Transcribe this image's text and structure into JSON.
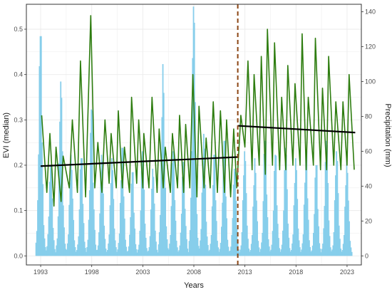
{
  "chart_data": {
    "type": "line",
    "title": "",
    "xlabel": "Years",
    "ylabel_left": "EVI (median)",
    "ylabel_right": "Precipitation (mm)",
    "x_ticks": [
      1993,
      1998,
      2003,
      2008,
      2013,
      2018,
      2023
    ],
    "y_left_ticks": [
      0.0,
      0.1,
      0.2,
      0.3,
      0.4,
      0.5
    ],
    "y_left_tick_labels": [
      "0.0",
      "0.1",
      "0.2",
      "0.3",
      "0.4",
      "0.5"
    ],
    "y_right_ticks": [
      0,
      20,
      40,
      60,
      80,
      100,
      120,
      140
    ],
    "xlim": [
      1991.6,
      2024.4
    ],
    "ylim_left": [
      -0.02,
      0.555
    ],
    "ylim_right": [
      -5.2,
      144.3
    ],
    "grid": true,
    "changepoint_year": 2012.3,
    "colors": {
      "evi_line": "#2e7d10",
      "precipitation_bars": "#87ceeb",
      "trend_line": "#000000",
      "changepoint_line": "#8b4513",
      "grid": "#ebebeb",
      "border": "#333333"
    },
    "series": [
      {
        "kind": "evi_seasonal_peaks",
        "comment": "annual peak (year, value) pairs of the EVI median line",
        "peaks": [
          [
            1993.1,
            0.31
          ],
          [
            1993.9,
            0.27
          ],
          [
            1994.5,
            0.24
          ],
          [
            1995.2,
            0.22
          ],
          [
            1996.1,
            0.3
          ],
          [
            1996.9,
            0.43
          ],
          [
            1997.9,
            0.53
          ],
          [
            1998.6,
            0.25
          ],
          [
            1999.3,
            0.3
          ],
          [
            1999.9,
            0.27
          ],
          [
            2000.6,
            0.32
          ],
          [
            2001.2,
            0.24
          ],
          [
            2001.9,
            0.35
          ],
          [
            2002.6,
            0.3
          ],
          [
            2003.1,
            0.27
          ],
          [
            2003.9,
            0.35
          ],
          [
            2004.6,
            0.28
          ],
          [
            2005.2,
            0.24
          ],
          [
            2005.9,
            0.27
          ],
          [
            2006.6,
            0.31
          ],
          [
            2007.2,
            0.29
          ],
          [
            2007.9,
            0.4
          ],
          [
            2008.5,
            0.33
          ],
          [
            2009.2,
            0.26
          ],
          [
            2009.9,
            0.34
          ],
          [
            2010.6,
            0.32
          ],
          [
            2011.2,
            0.3
          ],
          [
            2011.9,
            0.28
          ],
          [
            2012.6,
            0.31
          ],
          [
            2013.3,
            0.43
          ],
          [
            2013.9,
            0.4
          ],
          [
            2014.6,
            0.44
          ],
          [
            2015.2,
            0.5
          ],
          [
            2015.9,
            0.47
          ],
          [
            2016.6,
            0.35
          ],
          [
            2017.2,
            0.42
          ],
          [
            2017.9,
            0.38
          ],
          [
            2018.6,
            0.49
          ],
          [
            2019.2,
            0.35
          ],
          [
            2019.9,
            0.48
          ],
          [
            2020.6,
            0.37
          ],
          [
            2021.2,
            0.44
          ],
          [
            2021.9,
            0.34
          ],
          [
            2022.6,
            0.34
          ],
          [
            2023.2,
            0.4
          ]
        ],
        "troughs": [
          [
            1993.6,
            0.14
          ],
          [
            1994.3,
            0.11
          ],
          [
            1995.0,
            0.12
          ],
          [
            1995.8,
            0.15
          ],
          [
            1996.6,
            0.14
          ],
          [
            1997.4,
            0.13
          ],
          [
            1998.3,
            0.15
          ],
          [
            1999.0,
            0.14
          ],
          [
            1999.7,
            0.16
          ],
          [
            2000.4,
            0.15
          ],
          [
            2001.0,
            0.15
          ],
          [
            2001.7,
            0.14
          ],
          [
            2002.4,
            0.16
          ],
          [
            2003.0,
            0.15
          ],
          [
            2003.6,
            0.15
          ],
          [
            2004.4,
            0.14
          ],
          [
            2005.0,
            0.15
          ],
          [
            2005.7,
            0.14
          ],
          [
            2006.4,
            0.15
          ],
          [
            2007.0,
            0.14
          ],
          [
            2007.6,
            0.15
          ],
          [
            2008.3,
            0.13
          ],
          [
            2009.0,
            0.15
          ],
          [
            2009.6,
            0.15
          ],
          [
            2010.3,
            0.14
          ],
          [
            2011.0,
            0.14
          ],
          [
            2011.6,
            0.13
          ],
          [
            2012.2,
            0.15
          ],
          [
            2013.0,
            0.24
          ],
          [
            2013.7,
            0.19
          ],
          [
            2014.4,
            0.2
          ],
          [
            2015.0,
            0.18
          ],
          [
            2015.7,
            0.2
          ],
          [
            2016.4,
            0.19
          ],
          [
            2017.0,
            0.19
          ],
          [
            2017.7,
            0.2
          ],
          [
            2018.4,
            0.2
          ],
          [
            2019.0,
            0.19
          ],
          [
            2019.7,
            0.2
          ],
          [
            2020.4,
            0.19
          ],
          [
            2021.0,
            0.19
          ],
          [
            2021.7,
            0.2
          ],
          [
            2022.4,
            0.19
          ],
          [
            2023.0,
            0.2
          ],
          [
            2023.7,
            0.19
          ]
        ]
      },
      {
        "kind": "trend_segments",
        "segments": [
          {
            "x": [
              1993.0,
              2012.3
            ],
            "y": [
              0.198,
              0.218
            ]
          },
          {
            "x": [
              2012.3,
              2023.8
            ],
            "y": [
              0.287,
              0.272
            ]
          }
        ]
      },
      {
        "kind": "precipitation_bars",
        "comment": "annual peak monthly precipitation (mm) shown as spikes",
        "annual_peaks": [
          [
            1993.0,
            126
          ],
          [
            1994.0,
            52
          ],
          [
            1995.0,
            100
          ],
          [
            1996.0,
            58
          ],
          [
            1997.0,
            56
          ],
          [
            1998.0,
            84
          ],
          [
            1999.0,
            58
          ],
          [
            2000.0,
            56
          ],
          [
            2001.0,
            62
          ],
          [
            2002.0,
            48
          ],
          [
            2003.0,
            60
          ],
          [
            2004.0,
            50
          ],
          [
            2005.0,
            110
          ],
          [
            2006.0,
            60
          ],
          [
            2007.0,
            54
          ],
          [
            2008.0,
            143
          ],
          [
            2009.0,
            70
          ],
          [
            2010.0,
            58
          ],
          [
            2011.0,
            66
          ],
          [
            2012.0,
            50
          ],
          [
            2013.0,
            60
          ],
          [
            2014.0,
            56
          ],
          [
            2015.0,
            66
          ],
          [
            2016.0,
            58
          ],
          [
            2017.0,
            62
          ],
          [
            2018.0,
            56
          ],
          [
            2019.0,
            60
          ],
          [
            2020.0,
            52
          ],
          [
            2021.0,
            66
          ],
          [
            2022.0,
            60
          ],
          [
            2023.0,
            56
          ]
        ]
      }
    ]
  }
}
